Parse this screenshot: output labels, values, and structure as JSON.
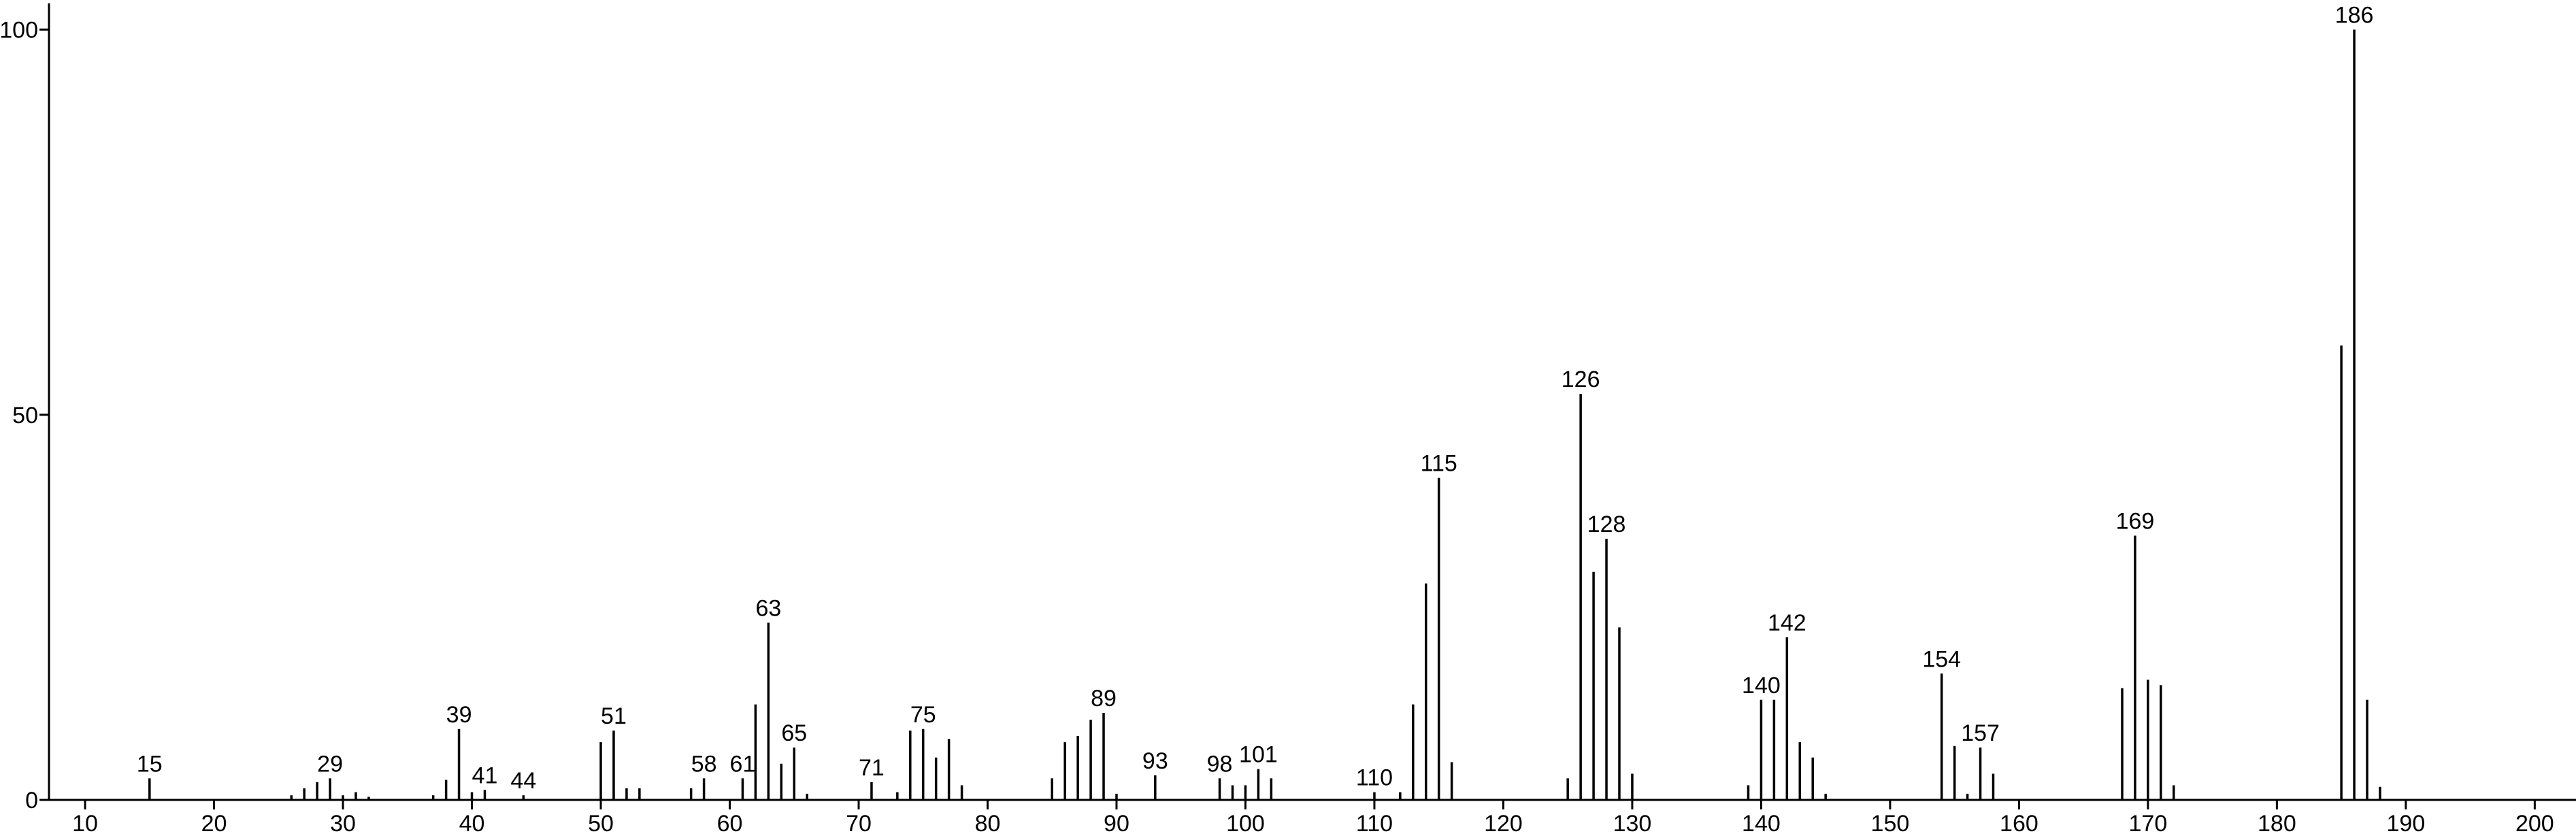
{
  "chart_data": {
    "type": "stick",
    "x": [
      15,
      26,
      27,
      28,
      29,
      30,
      31,
      32,
      37,
      38,
      39,
      40,
      41,
      44,
      50,
      51,
      52,
      53,
      57,
      58,
      61,
      62,
      63,
      64,
      65,
      66,
      71,
      73,
      74,
      75,
      76,
      77,
      78,
      85,
      86,
      87,
      88,
      89,
      90,
      93,
      98,
      99,
      100,
      101,
      102,
      110,
      112,
      113,
      114,
      115,
      116,
      125,
      126,
      127,
      128,
      129,
      130,
      139,
      140,
      141,
      142,
      143,
      144,
      145,
      154,
      155,
      156,
      157,
      158,
      168,
      169,
      170,
      171,
      172,
      185,
      186,
      187,
      188
    ],
    "values": [
      2.8,
      0.6,
      1.5,
      2.3,
      2.8,
      0.6,
      1,
      0.4,
      0.6,
      2.6,
      9.2,
      1,
      1.3,
      0.6,
      7.5,
      9,
      1.5,
      1.5,
      1.5,
      2.8,
      2.8,
      12.4,
      23,
      4.7,
      6.8,
      0.8,
      2.3,
      1,
      9,
      9.2,
      5.5,
      7.9,
      1.9,
      2.8,
      7.5,
      8.3,
      10.4,
      11.3,
      0.8,
      3.2,
      2.8,
      1.9,
      1.9,
      4,
      2.8,
      1,
      1,
      12.4,
      28.1,
      41.8,
      4.9,
      2.8,
      52.7,
      29.6,
      33.9,
      22.4,
      3.4,
      1.9,
      13,
      13,
      21.1,
      7.5,
      5.5,
      0.8,
      16.4,
      7,
      0.8,
      6.8,
      3.4,
      14.5,
      34.3,
      15.6,
      14.9,
      1.9,
      59,
      100,
      13,
      1.7
    ],
    "annotations": [
      15,
      29,
      39,
      41,
      44,
      51,
      58,
      61,
      63,
      65,
      71,
      75,
      89,
      93,
      98,
      101,
      110,
      115,
      126,
      128,
      140,
      142,
      154,
      157,
      169,
      186
    ],
    "color": "#000000",
    "xlim": [
      7.2,
      203.2
    ],
    "ylim": [
      0,
      103.4
    ],
    "xticks": [
      10,
      20,
      30,
      40,
      50,
      60,
      70,
      80,
      90,
      100,
      110,
      120,
      130,
      140,
      150,
      160,
      170,
      180,
      190,
      200
    ],
    "yticks": [
      0,
      50,
      100
    ]
  }
}
